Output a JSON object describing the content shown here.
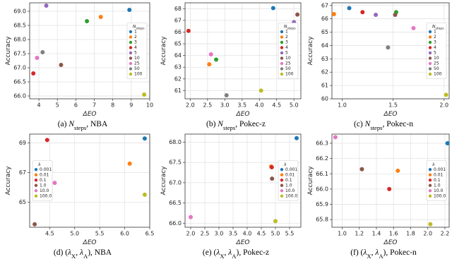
{
  "chart_data": [
    {
      "type": "scatter",
      "caption": [
        {
          "text": "(a) "
        },
        {
          "text": "N",
          "italic": true
        },
        {
          "sub": "steps"
        },
        {
          "text": ", NBA"
        }
      ],
      "x_label": "ΔEO",
      "y_label": "Accuracy",
      "legend_title": [
        {
          "text": "N",
          "italic": true
        },
        {
          "sub": "steps"
        }
      ],
      "legend": "center right",
      "grid": true,
      "xlim": [
        3.5,
        10
      ],
      "xticks": [
        4,
        5,
        6,
        7,
        8,
        9,
        10
      ],
      "ylim": [
        65.9,
        69.3
      ],
      "yticks": [
        {
          "value": 66,
          "label": "66.0"
        },
        66.5,
        {
          "value": 67,
          "label": "67.0"
        },
        67.5,
        {
          "value": 68,
          "label": "68.0"
        },
        68.5,
        {
          "value": 69,
          "label": "69.0"
        }
      ],
      "series": [
        {
          "name": "1",
          "color": "#1f77b4",
          "x": [
            8.9
          ],
          "values": [
            69.05
          ]
        },
        {
          "name": "2",
          "color": "#ff7f0e",
          "x": [
            7.35
          ],
          "values": [
            68.8
          ]
        },
        {
          "name": "3",
          "color": "#2ca02c",
          "x": [
            6.6
          ],
          "values": [
            68.65
          ]
        },
        {
          "name": "4",
          "color": "#d62728",
          "x": [
            3.7
          ],
          "values": [
            66.8
          ]
        },
        {
          "name": "5",
          "color": "#9467bd",
          "x": [
            4.4
          ],
          "values": [
            69.2
          ]
        },
        {
          "name": "10",
          "color": "#8c564b",
          "x": [
            5.2
          ],
          "values": [
            67.1
          ]
        },
        {
          "name": "25",
          "color": "#e377c2",
          "x": [
            3.9
          ],
          "values": [
            67.35
          ]
        },
        {
          "name": "50",
          "color": "#7f7f7f",
          "x": [
            4.2
          ],
          "values": [
            67.55
          ]
        },
        {
          "name": "100",
          "color": "#bcbd22",
          "x": [
            9.7
          ],
          "values": [
            66.05
          ]
        }
      ]
    },
    {
      "type": "scatter",
      "caption": [
        {
          "text": "(b) "
        },
        {
          "text": "N",
          "italic": true
        },
        {
          "sub": "steps"
        },
        {
          "text": ", Pokec-z"
        }
      ],
      "x_label": "ΔEO",
      "y_label": "Accuracy",
      "legend_title": [
        {
          "text": "N",
          "italic": true
        },
        {
          "sub": "steps"
        }
      ],
      "legend": "center right",
      "grid": true,
      "xlim": [
        1.85,
        5.2
      ],
      "xticks": [
        {
          "value": 2,
          "label": "2.0"
        },
        2.5,
        {
          "value": 3,
          "label": "3.0"
        },
        3.5,
        {
          "value": 4,
          "label": "4.0"
        },
        4.5,
        {
          "value": 5,
          "label": "5.0"
        }
      ],
      "ylim": [
        60.3,
        68.5
      ],
      "yticks": [
        61,
        62,
        63,
        64,
        65,
        66,
        67,
        68
      ],
      "series": [
        {
          "name": "1",
          "color": "#1f77b4",
          "x": [
            4.4
          ],
          "values": [
            68.05
          ]
        },
        {
          "name": "2",
          "color": "#ff7f0e",
          "x": [
            2.55
          ],
          "values": [
            63.25
          ]
        },
        {
          "name": "3",
          "color": "#2ca02c",
          "x": [
            2.75
          ],
          "values": [
            63.65
          ]
        },
        {
          "name": "4",
          "color": "#d62728",
          "x": [
            1.95
          ],
          "values": [
            66.1
          ]
        },
        {
          "name": "5",
          "color": "#9467bd",
          "x": [
            5.0
          ],
          "values": [
            66.85
          ]
        },
        {
          "name": "10",
          "color": "#8c564b",
          "x": [
            5.1
          ],
          "values": [
            67.5
          ]
        },
        {
          "name": "25",
          "color": "#e377c2",
          "x": [
            2.6
          ],
          "values": [
            64.1
          ]
        },
        {
          "name": "50",
          "color": "#7f7f7f",
          "x": [
            3.05
          ],
          "values": [
            60.6
          ]
        },
        {
          "name": "100",
          "color": "#bcbd22",
          "x": [
            4.05
          ],
          "values": [
            61.0
          ]
        }
      ]
    },
    {
      "type": "scatter",
      "caption": [
        {
          "text": "(c) "
        },
        {
          "text": "N",
          "italic": true
        },
        {
          "sub": "steps"
        },
        {
          "text": ", Pokec-n"
        }
      ],
      "x_label": "ΔEO",
      "y_label": "Accuracy",
      "legend_title": [
        {
          "text": "N",
          "italic": true
        },
        {
          "sub": "steps"
        }
      ],
      "legend": "center right",
      "grid": true,
      "xlim": [
        0.9,
        2.05
      ],
      "xticks": [
        {
          "value": 1,
          "label": "1.0"
        },
        1.5,
        {
          "value": 2,
          "label": "2.0"
        }
      ],
      "ylim": [
        60,
        67.2
      ],
      "yticks": [
        60,
        61,
        62,
        63,
        64,
        65,
        66,
        67
      ],
      "series": [
        {
          "name": "1",
          "color": "#1f77b4",
          "x": [
            1.07
          ],
          "values": [
            66.8
          ]
        },
        {
          "name": "2",
          "color": "#ff7f0e",
          "x": [
            0.92
          ],
          "values": [
            66.35
          ]
        },
        {
          "name": "3",
          "color": "#2ca02c",
          "x": [
            1.53
          ],
          "values": [
            66.5
          ]
        },
        {
          "name": "4",
          "color": "#d62728",
          "x": [
            1.2
          ],
          "values": [
            66.5
          ]
        },
        {
          "name": "5",
          "color": "#9467bd",
          "x": [
            1.33
          ],
          "values": [
            66.3
          ]
        },
        {
          "name": "10",
          "color": "#8c564b",
          "x": [
            1.52
          ],
          "values": [
            66.3
          ]
        },
        {
          "name": "25",
          "color": "#e377c2",
          "x": [
            1.7
          ],
          "values": [
            65.3
          ]
        },
        {
          "name": "50",
          "color": "#7f7f7f",
          "x": [
            1.45
          ],
          "values": [
            63.85
          ]
        },
        {
          "name": "100",
          "color": "#bcbd22",
          "x": [
            2.02
          ],
          "values": [
            60.3
          ]
        }
      ]
    },
    {
      "type": "scatter",
      "caption": [
        {
          "text": "(d) ("
        },
        {
          "text": "λ",
          "italic": true
        },
        {
          "sub": "X"
        },
        {
          "text": ", "
        },
        {
          "text": "λ",
          "italic": true
        },
        {
          "sub": "A"
        },
        {
          "text": "), NBA"
        }
      ],
      "x_label": "ΔEO",
      "y_label": "Accuracy",
      "legend_title": [
        {
          "text": "λ",
          "italic": true
        }
      ],
      "legend": "center left",
      "grid": true,
      "xlim": [
        4.1,
        6.5
      ],
      "xticks": [
        4.5,
        {
          "value": 5,
          "label": "5.0"
        },
        5.5,
        {
          "value": 6,
          "label": "6.0"
        },
        6.5
      ],
      "ylim": [
        63.3,
        69.6
      ],
      "yticks": [
        65,
        67,
        69
      ],
      "series": [
        {
          "name": "0.001",
          "color": "#1f77b4",
          "x": [
            6.4
          ],
          "values": [
            69.3
          ]
        },
        {
          "name": "0.01",
          "color": "#ff7f0e",
          "x": [
            6.1
          ],
          "values": [
            67.6
          ]
        },
        {
          "name": "0.1",
          "color": "#d62728",
          "x": [
            4.45
          ],
          "values": [
            69.2
          ]
        },
        {
          "name": "1.0",
          "color": "#8c564b",
          "x": [
            4.2
          ],
          "values": [
            63.5
          ]
        },
        {
          "name": "10.0",
          "color": "#e377c2",
          "x": [
            4.6
          ],
          "values": [
            66.3
          ]
        },
        {
          "name": "100.0",
          "color": "#bcbd22",
          "x": [
            6.4
          ],
          "values": [
            65.5
          ]
        }
      ]
    },
    {
      "type": "scatter",
      "caption": [
        {
          "text": "(e) ("
        },
        {
          "text": "λ",
          "italic": true
        },
        {
          "sub": "X"
        },
        {
          "text": ", "
        },
        {
          "text": "λ",
          "italic": true
        },
        {
          "sub": "A"
        },
        {
          "text": "), Pokec-z"
        }
      ],
      "x_label": "ΔEO",
      "y_label": "Accuracy",
      "legend_title": [
        {
          "text": "λ",
          "italic": true
        }
      ],
      "legend": "center right",
      "grid": true,
      "xlim": [
        1.8,
        5.9
      ],
      "xticks": [
        {
          "value": 2,
          "label": "2.0"
        },
        2.5,
        {
          "value": 3,
          "label": "3.0"
        },
        3.5,
        {
          "value": 4,
          "label": "4.0"
        },
        4.5,
        {
          "value": 5,
          "label": "5.0"
        },
        5.5
      ],
      "ylim": [
        65.9,
        68.2
      ],
      "yticks": [
        {
          "value": 66,
          "label": "66.0"
        },
        66.5,
        {
          "value": 67,
          "label": "67.0"
        },
        67.5,
        {
          "value": 68,
          "label": "68.0"
        }
      ],
      "series": [
        {
          "name": "0.001",
          "color": "#1f77b4",
          "x": [
            5.75
          ],
          "values": [
            68.1
          ]
        },
        {
          "name": "0.01",
          "color": "#ff7f0e",
          "x": [
            4.85
          ],
          "values": [
            67.4
          ]
        },
        {
          "name": "0.1",
          "color": "#d62728",
          "x": [
            4.87
          ],
          "values": [
            67.38
          ]
        },
        {
          "name": "1.0",
          "color": "#8c564b",
          "x": [
            4.88
          ],
          "values": [
            67.1
          ]
        },
        {
          "name": "10.0",
          "color": "#e377c2",
          "x": [
            2.0
          ],
          "values": [
            66.15
          ]
        },
        {
          "name": "100.0",
          "color": "#bcbd22",
          "x": [
            5.0
          ],
          "values": [
            66.05
          ]
        }
      ]
    },
    {
      "type": "scatter",
      "caption": [
        {
          "text": "(f) ("
        },
        {
          "text": "λ",
          "italic": true
        },
        {
          "sub": "X"
        },
        {
          "text": ", "
        },
        {
          "text": "λ",
          "italic": true
        },
        {
          "sub": "A"
        },
        {
          "text": "), Pokec-n"
        }
      ],
      "x_label": "ΔEO",
      "y_label": "Accuracy",
      "legend_title": [
        {
          "text": "λ",
          "italic": true
        }
      ],
      "legend": "center right",
      "grid": true,
      "xlim": [
        0.88,
        2.25
      ],
      "xticks": [
        {
          "value": 1,
          "label": "1.0"
        },
        1.2,
        1.4,
        1.6,
        1.8,
        {
          "value": 2,
          "label": "2.0"
        },
        2.2
      ],
      "ylim": [
        65.75,
        66.36
      ],
      "yticks": [
        65.8,
        65.9,
        {
          "value": 66,
          "label": "66.0"
        },
        66.1,
        66.2,
        66.3
      ],
      "series": [
        {
          "name": "0.001",
          "color": "#1f77b4",
          "x": [
            2.23
          ],
          "values": [
            66.3
          ]
        },
        {
          "name": "0.01",
          "color": "#ff7f0e",
          "x": [
            1.65
          ],
          "values": [
            66.12
          ]
        },
        {
          "name": "0.1",
          "color": "#d62728",
          "x": [
            1.55
          ],
          "values": [
            66.0
          ]
        },
        {
          "name": "1.0",
          "color": "#8c564b",
          "x": [
            1.23
          ],
          "values": [
            66.13
          ]
        },
        {
          "name": "10.0",
          "color": "#e377c2",
          "x": [
            0.92
          ],
          "values": [
            66.34
          ]
        },
        {
          "name": "100.0",
          "color": "#bcbd22",
          "x": [
            2.03
          ],
          "values": [
            65.77
          ]
        }
      ]
    }
  ]
}
